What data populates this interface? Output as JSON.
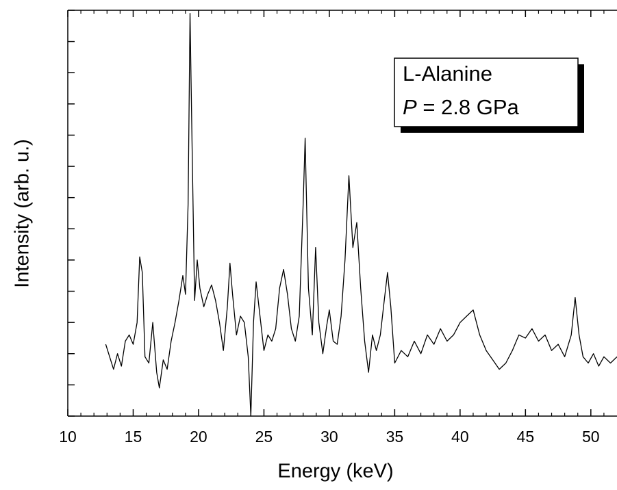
{
  "chart_data": {
    "type": "line",
    "xlabel": "Energy (keV)",
    "ylabel": "Intensity (arb. u.)",
    "xlim": [
      10,
      52
    ],
    "ylim": [
      0,
      13
    ],
    "xticks": [
      10,
      15,
      20,
      25,
      30,
      35,
      40,
      45,
      50
    ],
    "xminorticks": [
      11,
      12,
      13,
      14,
      16,
      17,
      18,
      19,
      21,
      22,
      23,
      24,
      26,
      27,
      28,
      29,
      31,
      32,
      33,
      34,
      36,
      37,
      38,
      39,
      41,
      42,
      43,
      44,
      46,
      47,
      48,
      49,
      51
    ],
    "yticks": [
      0,
      1,
      2,
      3,
      4,
      5,
      6,
      7,
      8,
      9,
      10,
      11,
      12,
      13
    ],
    "annotations": [
      "L-Alanine",
      {
        "symbol": "P",
        "text": "= 2.8 GPa"
      }
    ],
    "x": [
      12.9,
      13.2,
      13.5,
      13.8,
      14.1,
      14.4,
      14.7,
      15.0,
      15.3,
      15.5,
      15.7,
      15.9,
      16.2,
      16.5,
      16.8,
      17.0,
      17.3,
      17.6,
      17.9,
      18.2,
      18.5,
      18.8,
      19.0,
      19.2,
      19.35,
      19.5,
      19.7,
      19.9,
      20.1,
      20.4,
      20.7,
      21.0,
      21.3,
      21.6,
      21.9,
      22.2,
      22.4,
      22.6,
      22.9,
      23.2,
      23.5,
      23.8,
      24.0,
      24.2,
      24.4,
      24.7,
      25.0,
      25.3,
      25.6,
      25.9,
      26.2,
      26.5,
      26.8,
      27.1,
      27.4,
      27.7,
      28.0,
      28.15,
      28.4,
      28.7,
      28.95,
      29.2,
      29.5,
      29.8,
      30.0,
      30.3,
      30.6,
      30.9,
      31.2,
      31.5,
      31.8,
      32.1,
      32.4,
      32.7,
      33.0,
      33.3,
      33.6,
      33.9,
      34.2,
      34.45,
      34.7,
      35.0,
      35.5,
      36.0,
      36.5,
      37.0,
      37.5,
      38.0,
      38.5,
      39.0,
      39.5,
      40.0,
      40.5,
      41.0,
      41.5,
      42.0,
      42.5,
      43.0,
      43.5,
      44.0,
      44.5,
      45.0,
      45.5,
      46.0,
      46.5,
      47.0,
      47.5,
      48.0,
      48.5,
      48.8,
      49.1,
      49.4,
      49.8,
      50.2,
      50.6,
      51.0,
      51.5,
      52.0
    ],
    "series": [
      {
        "color": "#000000",
        "values": [
          2.3,
          1.9,
          1.5,
          2.0,
          1.6,
          2.4,
          2.6,
          2.3,
          3.0,
          5.1,
          4.6,
          1.9,
          1.7,
          3.0,
          1.4,
          0.9,
          1.8,
          1.5,
          2.4,
          3.0,
          3.7,
          4.5,
          3.9,
          6.8,
          12.9,
          8.8,
          3.7,
          5.0,
          4.1,
          3.5,
          3.9,
          4.2,
          3.7,
          3.0,
          2.1,
          3.5,
          4.9,
          3.9,
          2.6,
          3.2,
          3.0,
          1.9,
          0.0,
          3.0,
          4.3,
          3.2,
          2.1,
          2.6,
          2.4,
          2.8,
          4.1,
          4.7,
          3.9,
          2.8,
          2.4,
          3.2,
          6.8,
          8.9,
          4.1,
          2.6,
          5.4,
          3.0,
          2.0,
          2.9,
          3.4,
          2.4,
          2.3,
          3.2,
          5.0,
          7.7,
          5.4,
          6.2,
          4.1,
          2.4,
          1.4,
          2.6,
          2.1,
          2.6,
          3.7,
          4.6,
          3.5,
          1.7,
          2.1,
          1.9,
          2.4,
          2.0,
          2.6,
          2.3,
          2.8,
          2.4,
          2.6,
          3.0,
          3.2,
          3.4,
          2.6,
          2.1,
          1.8,
          1.5,
          1.7,
          2.1,
          2.6,
          2.5,
          2.8,
          2.4,
          2.6,
          2.1,
          2.3,
          1.9,
          2.6,
          3.8,
          2.6,
          1.9,
          1.7,
          2.0,
          1.6,
          1.9,
          1.7,
          1.9
        ]
      }
    ]
  }
}
